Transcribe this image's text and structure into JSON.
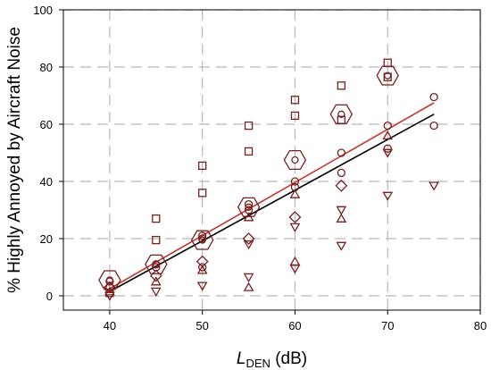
{
  "chart_data": {
    "type": "scatter",
    "xlabel_main": "L",
    "xlabel_sub": "DEN",
    "xlabel_suffix": " (dB)",
    "ylabel": "% Highly Annoyed by Aircraft Noise",
    "xlim": [
      35,
      80
    ],
    "ylim": [
      -5,
      100
    ],
    "xticks": [
      40,
      50,
      60,
      70,
      80
    ],
    "yticks": [
      0,
      20,
      40,
      60,
      80,
      100
    ],
    "grid": true,
    "colors": {
      "marker": "#7a1f1f",
      "black_line": "#000000",
      "red_line": "#c0392b",
      "grid": "#b8b8b8"
    },
    "series": [
      {
        "marker": "square",
        "points": [
          [
            40,
            1
          ],
          [
            45,
            27
          ],
          [
            45,
            19.5
          ],
          [
            50,
            45.5
          ],
          [
            50,
            36
          ],
          [
            55,
            59.5
          ],
          [
            55,
            50.5
          ],
          [
            60,
            68.5
          ],
          [
            60,
            63
          ],
          [
            65,
            73.5
          ],
          [
            65,
            61.5
          ],
          [
            70,
            81.5
          ],
          [
            70,
            76.5
          ]
        ]
      },
      {
        "marker": "circle",
        "points": [
          [
            40,
            5
          ],
          [
            40,
            3
          ],
          [
            45,
            11
          ],
          [
            45,
            10
          ],
          [
            50,
            21
          ],
          [
            50,
            20
          ],
          [
            50,
            10
          ],
          [
            55,
            32
          ],
          [
            55,
            30
          ],
          [
            60,
            40
          ],
          [
            60,
            38
          ],
          [
            65,
            50
          ],
          [
            65,
            43
          ],
          [
            70,
            59.5
          ],
          [
            70,
            51.5
          ],
          [
            75,
            69.5
          ],
          [
            75,
            59.5
          ]
        ]
      },
      {
        "marker": "triangle-up",
        "points": [
          [
            40,
            1.5
          ],
          [
            45,
            5
          ],
          [
            50,
            9
          ],
          [
            55,
            3
          ],
          [
            55,
            27.5
          ],
          [
            60,
            12
          ],
          [
            60,
            35.5
          ],
          [
            65,
            27
          ],
          [
            70,
            56
          ]
        ]
      },
      {
        "marker": "triangle-down",
        "points": [
          [
            40,
            0
          ],
          [
            45,
            1.5
          ],
          [
            50,
            3.5
          ],
          [
            55,
            6.5
          ],
          [
            55,
            18
          ],
          [
            60,
            9.5
          ],
          [
            60,
            24
          ],
          [
            65,
            30
          ],
          [
            65,
            17.5
          ],
          [
            70,
            35
          ],
          [
            70,
            50
          ],
          [
            75,
            38.5
          ]
        ]
      },
      {
        "marker": "diamond",
        "points": [
          [
            40,
            3
          ],
          [
            45,
            7
          ],
          [
            50,
            12
          ],
          [
            55,
            20
          ],
          [
            60,
            27.5
          ],
          [
            65,
            38.5
          ]
        ]
      },
      {
        "marker": "hexagon",
        "points": [
          [
            40,
            5.5
          ],
          [
            45,
            11
          ],
          [
            50,
            19.5
          ],
          [
            55,
            31
          ],
          [
            60,
            47.5
          ],
          [
            65,
            63.5
          ],
          [
            70,
            77
          ]
        ]
      }
    ],
    "fits": [
      {
        "color": "black",
        "x": [
          40,
          75
        ],
        "y": [
          1.5,
          63.5
        ]
      },
      {
        "color": "red",
        "x": [
          40,
          75
        ],
        "y": [
          2.5,
          67.5
        ]
      }
    ]
  }
}
